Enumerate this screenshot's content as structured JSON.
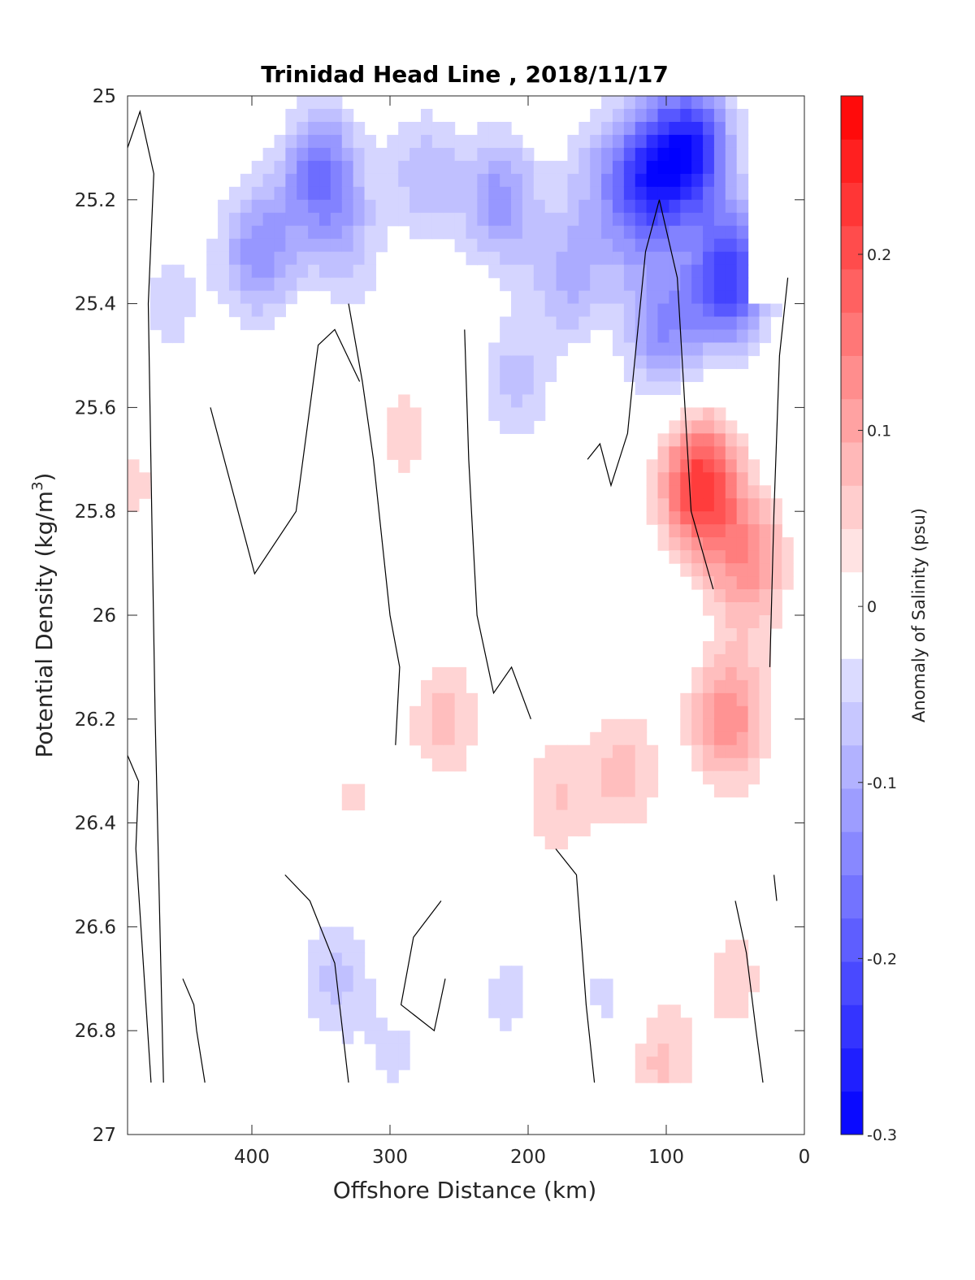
{
  "chart_data": {
    "type": "heatmap",
    "title": "Trinidad Head Line , 2018/11/17",
    "xlabel": "Offshore Distance (km)",
    "ylabel_main": "Potential Density (kg/m",
    "ylabel_sup": "3",
    "ylabel_close": ")",
    "xlim": [
      490,
      0
    ],
    "ylim": [
      25,
      27
    ],
    "y_reversed": true,
    "x_ticks": [
      400,
      300,
      200,
      100,
      0
    ],
    "y_ticks": [
      "25",
      "25.2",
      "25.4",
      "25.6",
      "25.8",
      "26",
      "26.2",
      "26.4",
      "26.6",
      "26.8",
      "27"
    ],
    "colorbar": {
      "label": "Anomaly of Salinity (psu)",
      "range": [
        -0.3,
        0.29
      ],
      "ticks": [
        "0.2",
        "0.1",
        "0",
        "-0.1",
        "-0.2",
        "-0.3"
      ],
      "min_color": "#0000ff",
      "mid_color": "#ffffff",
      "max_color": "#ff0000"
    },
    "blobs": [
      {
        "x": 75,
        "y": 25.75,
        "v": 0.23
      },
      {
        "x": 40,
        "y": 25.9,
        "v": 0.12
      },
      {
        "x": 290,
        "y": 25.65,
        "v": 0.05
      },
      {
        "x": 55,
        "y": 26.2,
        "v": 0.13
      },
      {
        "x": 130,
        "y": 26.3,
        "v": 0.07
      },
      {
        "x": 180,
        "y": 26.35,
        "v": 0.06
      },
      {
        "x": 260,
        "y": 26.2,
        "v": 0.07
      },
      {
        "x": 325,
        "y": 26.35,
        "v": 0.04
      },
      {
        "x": 480,
        "y": 25.75,
        "v": 0.05
      },
      {
        "x": 420,
        "y": 25.85,
        "v": 0.04
      },
      {
        "x": 50,
        "y": 26.7,
        "v": 0.05
      },
      {
        "x": 105,
        "y": 26.85,
        "v": 0.07
      },
      {
        "x": 185,
        "y": 26.8,
        "v": 0.04
      },
      {
        "x": 110,
        "y": 25.15,
        "v": -0.2
      },
      {
        "x": 102,
        "y": 25.45,
        "v": -0.13
      },
      {
        "x": 55,
        "y": 25.35,
        "v": -0.23
      },
      {
        "x": 80,
        "y": 25.1,
        "v": -0.22
      },
      {
        "x": 170,
        "y": 25.35,
        "v": -0.09
      },
      {
        "x": 125,
        "y": 25.25,
        "v": -0.06
      },
      {
        "x": 220,
        "y": 25.2,
        "v": -0.12
      },
      {
        "x": 210,
        "y": 25.55,
        "v": -0.07
      },
      {
        "x": 350,
        "y": 25.15,
        "v": -0.16
      },
      {
        "x": 395,
        "y": 25.3,
        "v": -0.13
      },
      {
        "x": 460,
        "y": 25.4,
        "v": -0.05
      },
      {
        "x": 450,
        "y": 25.75,
        "v": -0.03
      },
      {
        "x": 330,
        "y": 25.3,
        "v": -0.06
      },
      {
        "x": 275,
        "y": 25.15,
        "v": -0.08
      },
      {
        "x": 150,
        "y": 25.15,
        "v": -0.06
      },
      {
        "x": 210,
        "y": 26.75,
        "v": -0.06
      },
      {
        "x": 145,
        "y": 26.75,
        "v": -0.05
      },
      {
        "x": 340,
        "y": 26.7,
        "v": -0.07
      },
      {
        "x": 295,
        "y": 26.85,
        "v": -0.04
      }
    ]
  }
}
